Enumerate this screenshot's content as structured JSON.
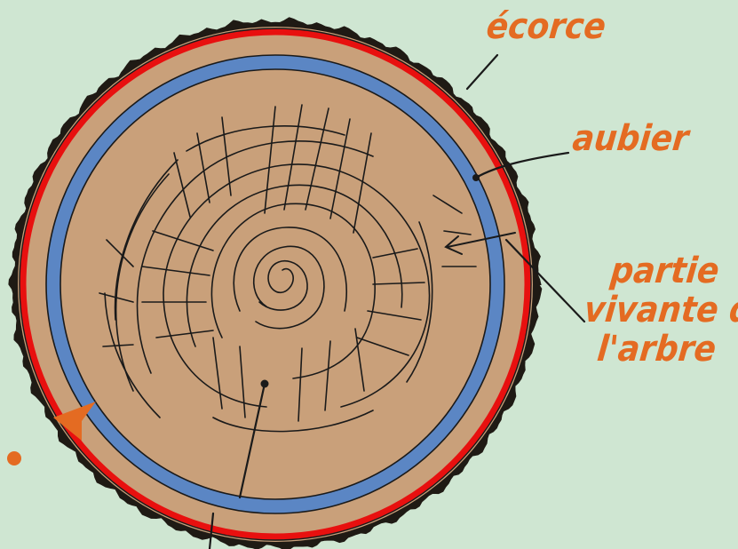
{
  "labels": {
    "ecorce": "écorce",
    "aubier": "aubier",
    "partie_vivante": [
      "partie",
      "vivante de",
      "l'arbre"
    ]
  },
  "colors": {
    "background": "#cfe6d2",
    "label": "#e46b22",
    "wood": "#c9a07a",
    "red_ring": "#e8100f",
    "blue_ring": "#5b86c4",
    "ink": "#1a1a1a",
    "arrow": "#e46b22"
  }
}
